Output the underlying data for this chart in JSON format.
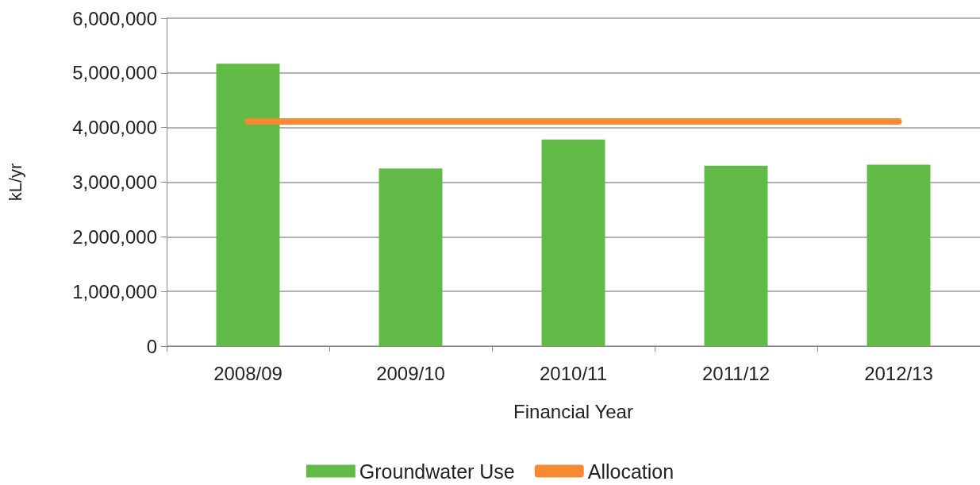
{
  "chart_data": {
    "type": "bar",
    "xlabel": "Financial Year",
    "ylabel": "kL/yr",
    "categories": [
      "2008/09",
      "2009/10",
      "2010/11",
      "2011/12",
      "2012/13"
    ],
    "series": [
      {
        "name": "Groundwater Use",
        "color": "#62bb46",
        "values": [
          5170000,
          3250000,
          3780000,
          3300000,
          3320000
        ]
      },
      {
        "name": "Allocation",
        "type": "line",
        "color": "#f58a32",
        "values": [
          4110000,
          4110000,
          4110000,
          4110000,
          4110000
        ]
      }
    ],
    "ylim": [
      0,
      6000000
    ],
    "yticks": [
      0,
      {
        "value": 1000000,
        "label": "1,000,000"
      },
      {
        "value": 2000000,
        "label": "2,000,000"
      },
      {
        "value": 3000000,
        "label": "3,000,000"
      },
      {
        "value": 4000000,
        "label": "4,000,000"
      },
      {
        "value": 5000000,
        "label": "5,000,000"
      },
      {
        "value": 6000000,
        "label": "6,000,000"
      }
    ],
    "grid": "y",
    "legend": "bottom",
    "line_style": "solid"
  }
}
